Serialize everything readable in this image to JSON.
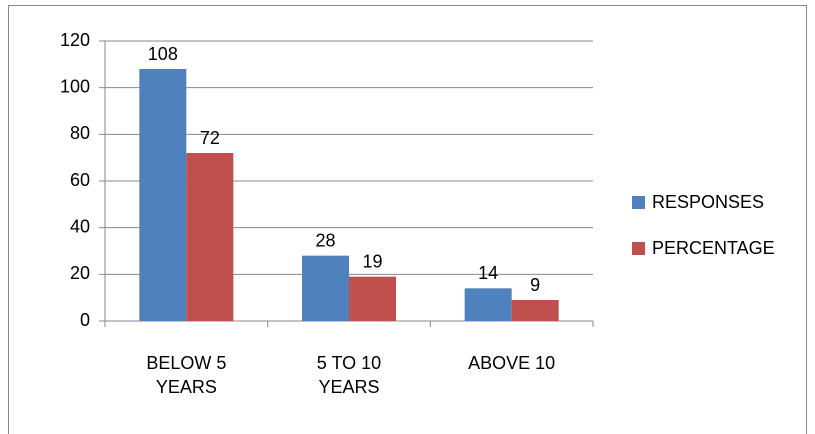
{
  "chart_data": {
    "type": "bar",
    "categories": [
      "BELOW 5 YEARS",
      "5 TO 10 YEARS",
      "ABOVE 10"
    ],
    "series": [
      {
        "name": "RESPONSES",
        "color": "#4f81bd",
        "values": [
          108,
          28,
          14
        ]
      },
      {
        "name": "PERCENTAGE",
        "color": "#c0504d",
        "values": [
          72,
          19,
          9
        ]
      }
    ],
    "ylim": [
      0,
      120
    ],
    "yticks": [
      0,
      20,
      40,
      60,
      80,
      100,
      120
    ],
    "grid": true,
    "legend": "right"
  }
}
